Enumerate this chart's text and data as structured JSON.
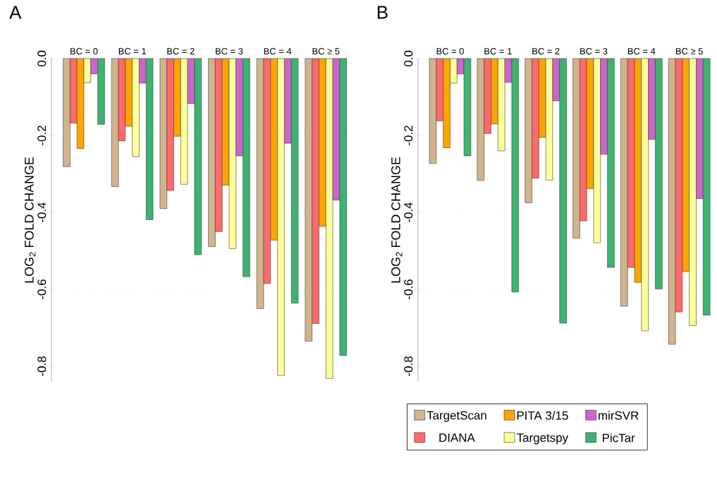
{
  "chart_data": [
    {
      "type": "bar",
      "title": "A",
      "ylabel": "LOG$_{2}$ FOLD CHANGE",
      "categories": [
        "BC = 0",
        "BC = 1",
        "BC = 2",
        "BC = 3",
        "BC = 4",
        "BC ≥ 5"
      ],
      "ylim": [
        -0.84,
        0
      ],
      "yticks": [
        {
          "value": 0,
          "label": "0.0"
        },
        {
          "value": -0.2,
          "label": "-0.2"
        },
        {
          "value": -0.4,
          "label": "-0.4"
        },
        {
          "value": -0.6,
          "label": "-0.6"
        },
        {
          "value": -0.8,
          "label": "-0.8"
        }
      ],
      "grid": "y",
      "legend": false,
      "series": [
        {
          "color": "#d2b48c",
          "values": [
            -0.281,
            -0.333,
            -0.39,
            -0.489,
            -0.65,
            -0.735
          ]
        },
        {
          "color": "#ff6a6a",
          "values": [
            -0.168,
            -0.214,
            -0.343,
            -0.45,
            -0.585,
            -0.689
          ]
        },
        {
          "color": "#ffa500",
          "values": [
            -0.234,
            -0.176,
            -0.202,
            -0.329,
            -0.472,
            -0.436
          ]
        },
        {
          "color": "#ffff99",
          "values": [
            -0.063,
            -0.255,
            -0.327,
            -0.494,
            -0.824,
            -0.832
          ]
        },
        {
          "color": "#cc66cc",
          "values": [
            -0.04,
            -0.064,
            -0.117,
            -0.253,
            -0.22,
            -0.368
          ]
        },
        {
          "color": "#3cb371",
          "values": [
            -0.171,
            -0.419,
            -0.51,
            -0.567,
            -0.636,
            -0.772
          ]
        }
      ]
    },
    {
      "type": "bar",
      "title": "B",
      "ylabel": "LOG$_{2}$ FOLD CHANGE",
      "categories": [
        "BC = 0",
        "BC = 1",
        "BC = 2",
        "BC = 3",
        "BC = 4",
        "BC ≥ 5"
      ],
      "ylim": [
        -0.84,
        0
      ],
      "yticks": [
        {
          "value": 0,
          "label": "0.0"
        },
        {
          "value": -0.2,
          "label": "-0.2"
        },
        {
          "value": -0.4,
          "label": "-0.4"
        },
        {
          "value": -0.6,
          "label": "-0.6"
        },
        {
          "value": -0.8,
          "label": "-0.8"
        }
      ],
      "grid": "y",
      "legend": "bottom",
      "series": [
        {
          "name": "TargetScan",
          "color": "#d2b48c",
          "values": [
            -0.273,
            -0.317,
            -0.375,
            -0.467,
            -0.644,
            -0.743
          ]
        },
        {
          "name": "DIANA",
          "color": "#ff6a6a",
          "values": [
            -0.162,
            -0.195,
            -0.311,
            -0.422,
            -0.543,
            -0.659
          ]
        },
        {
          "name": "PITA 3/15",
          "color": "#ffa500",
          "values": [
            -0.232,
            -0.17,
            -0.205,
            -0.338,
            -0.582,
            -0.554
          ]
        },
        {
          "name": "Targetspy",
          "color": "#ffff99",
          "values": [
            -0.064,
            -0.24,
            -0.316,
            -0.479,
            -0.708,
            -0.694
          ]
        },
        {
          "name": "mirSVR",
          "color": "#cc66cc",
          "values": [
            -0.04,
            -0.062,
            -0.11,
            -0.249,
            -0.21,
            -0.364
          ]
        },
        {
          "name": "PicTar",
          "color": "#3cb371",
          "values": [
            -0.253,
            -0.607,
            -0.688,
            -0.543,
            -0.599,
            -0.667
          ]
        }
      ]
    }
  ]
}
